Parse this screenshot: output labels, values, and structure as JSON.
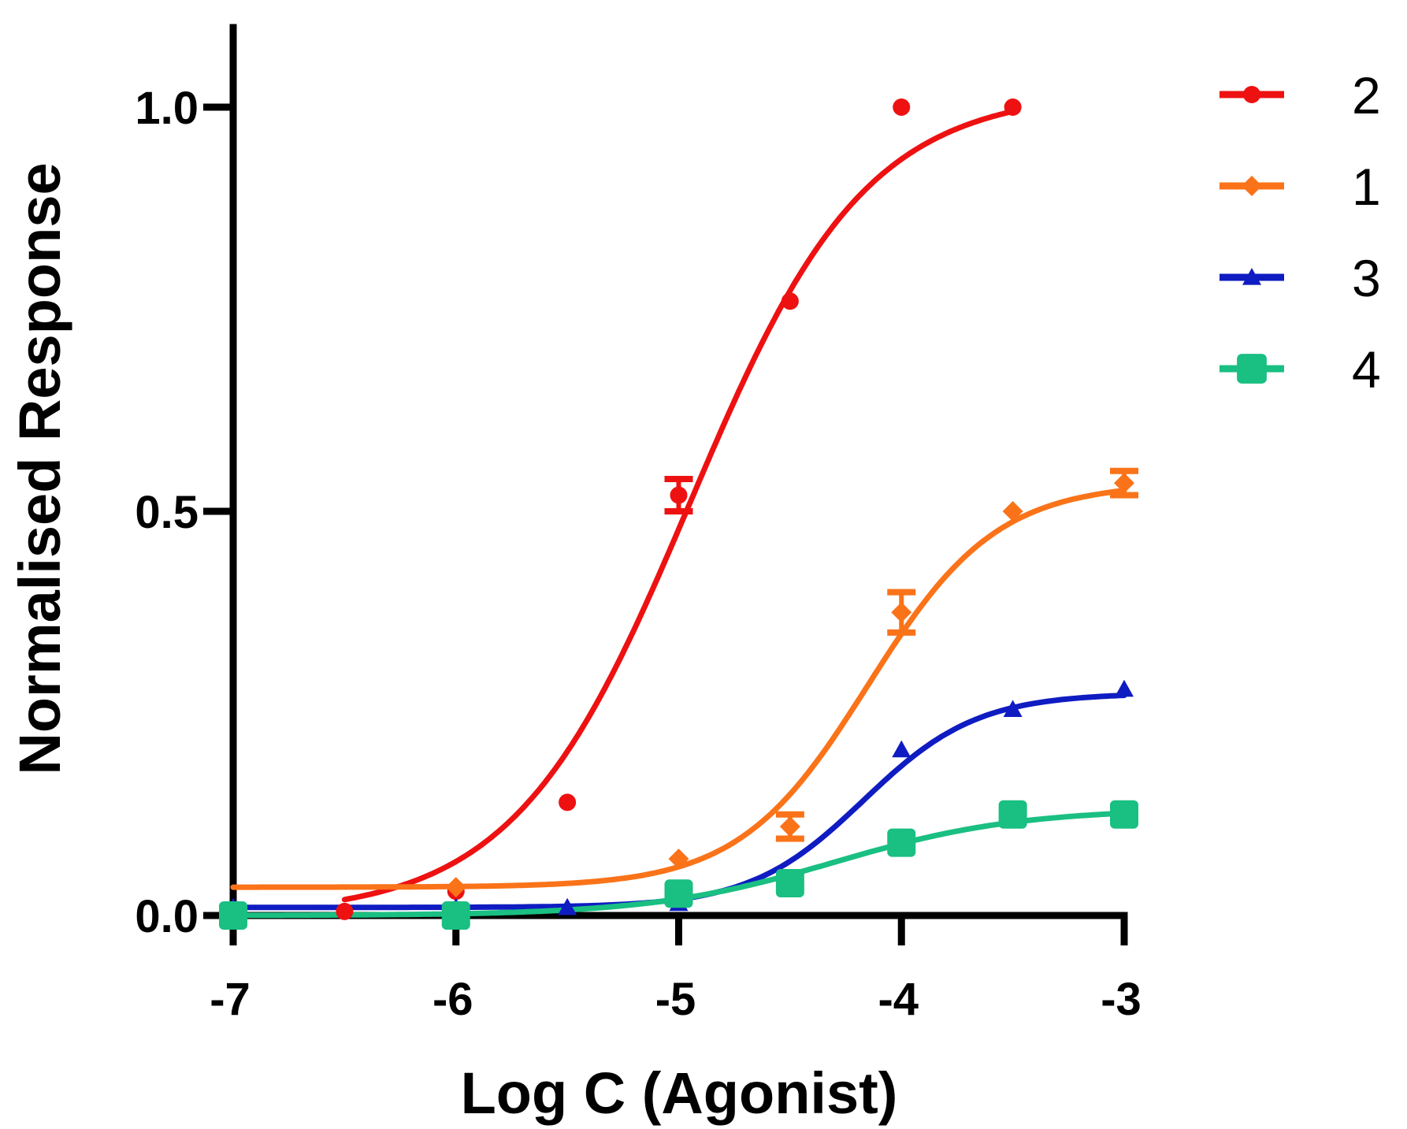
{
  "chart_data": {
    "type": "line",
    "title": "",
    "xlabel": "Log C (Agonist)",
    "ylabel": "Normalised Response",
    "xlim": [
      -7,
      -3
    ],
    "ylim": [
      0,
      1.05
    ],
    "x_ticks": [
      -7,
      -6,
      -5,
      -4,
      -3
    ],
    "x_tick_labels": [
      "-7",
      "-6",
      "-5",
      "-4",
      "-3"
    ],
    "y_ticks": [
      0,
      0.5,
      1.0
    ],
    "y_tick_labels": [
      "0.0",
      "0.5",
      "1.0"
    ],
    "grid": false,
    "legend_position": "top-right",
    "series": [
      {
        "name": "2",
        "color": "#ee1111",
        "marker": "circle",
        "points": [
          {
            "x": -6.5,
            "y": 0.005
          },
          {
            "x": -6.0,
            "y": 0.03
          },
          {
            "x": -5.5,
            "y": 0.14
          },
          {
            "x": -5.0,
            "y": 0.52,
            "err": 0.02
          },
          {
            "x": -4.5,
            "y": 0.76
          },
          {
            "x": -4.0,
            "y": 1.0
          },
          {
            "x": -3.5,
            "y": 1.0
          }
        ],
        "fit": {
          "bottom": 0.0,
          "top": 1.02,
          "logEC50": -4.95,
          "hill": 1.1
        },
        "fit_range": [
          -6.5,
          -3.5
        ]
      },
      {
        "name": "1",
        "color": "#fa7319",
        "marker": "diamond",
        "points": [
          {
            "x": -6.0,
            "y": 0.035
          },
          {
            "x": -5.0,
            "y": 0.07
          },
          {
            "x": -4.5,
            "y": 0.11,
            "err": 0.015
          },
          {
            "x": -4.0,
            "y": 0.375,
            "err": 0.025
          },
          {
            "x": -3.5,
            "y": 0.5
          },
          {
            "x": -3.0,
            "y": 0.535,
            "err": 0.015
          }
        ],
        "fit": {
          "bottom": 0.035,
          "top": 0.535,
          "logEC50": -4.15,
          "hill": 1.5
        },
        "fit_range": [
          -7,
          -3
        ]
      },
      {
        "name": "3",
        "color": "#0f1cc2",
        "marker": "triangle",
        "points": [
          {
            "x": -7.0,
            "y": 0.01
          },
          {
            "x": -6.0,
            "y": 0.01
          },
          {
            "x": -5.5,
            "y": 0.01
          },
          {
            "x": -5.0,
            "y": 0.015
          },
          {
            "x": -4.5,
            "y": 0.04
          },
          {
            "x": -4.0,
            "y": 0.205
          },
          {
            "x": -3.5,
            "y": 0.255
          },
          {
            "x": -3.0,
            "y": 0.28
          }
        ],
        "fit": {
          "bottom": 0.01,
          "top": 0.275,
          "logEC50": -4.17,
          "hill": 1.7
        },
        "fit_range": [
          -7,
          -3
        ]
      },
      {
        "name": "4",
        "color": "#1abf82",
        "marker": "square",
        "points": [
          {
            "x": -7.0,
            "y": 0.0
          },
          {
            "x": -6.0,
            "y": 0.0
          },
          {
            "x": -5.0,
            "y": 0.027
          },
          {
            "x": -4.5,
            "y": 0.04
          },
          {
            "x": -4.0,
            "y": 0.09
          },
          {
            "x": -3.5,
            "y": 0.125
          },
          {
            "x": -3.0,
            "y": 0.125
          }
        ],
        "fit": {
          "bottom": 0.0,
          "top": 0.132,
          "logEC50": -4.3,
          "hill": 1.05
        },
        "fit_range": [
          -7,
          -3
        ]
      }
    ]
  }
}
